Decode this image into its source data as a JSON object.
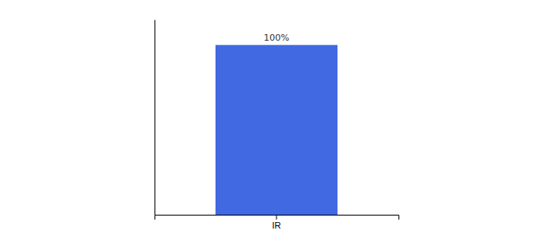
{
  "chart_data": {
    "type": "bar",
    "categories": [
      "IR"
    ],
    "values": [
      100
    ],
    "value_labels": [
      "100%"
    ],
    "data_labels": true,
    "color": "#4169E1",
    "ylim": [
      0,
      115
    ],
    "tick_labels": "x"
  }
}
